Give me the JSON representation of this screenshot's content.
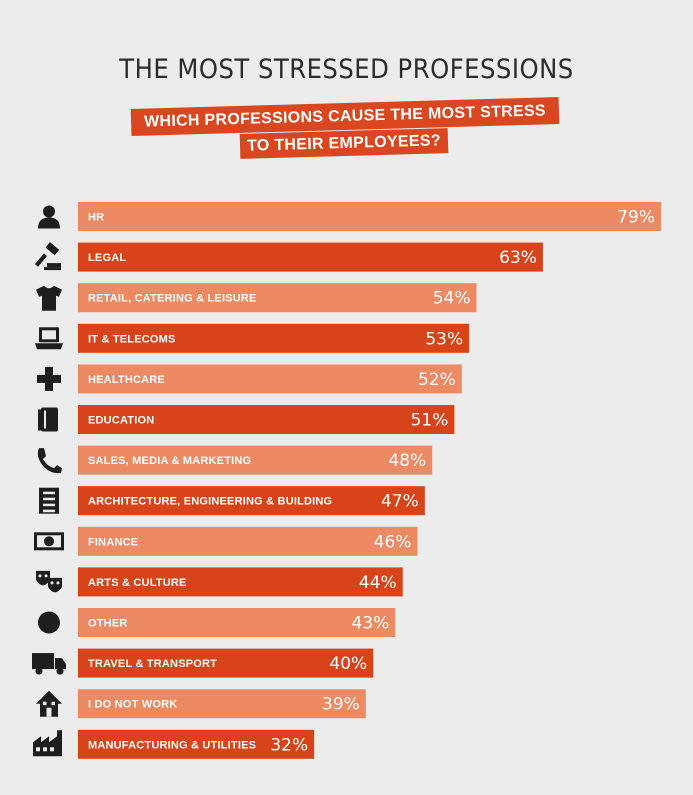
{
  "title": "THE MOST STRESSED PROFESSIONS",
  "subtitle_line1": "WHICH PROFESSIONS CAUSE THE MOST STRESS",
  "subtitle_line2": "TO THEIR EMPLOYEES?",
  "colors": {
    "light": "#eb8a63",
    "dark": "#d8441a",
    "background": "#ececec",
    "banner": "#d9461f"
  },
  "chart_data": {
    "type": "bar",
    "orientation": "horizontal",
    "title": "THE MOST STRESSED PROFESSIONS",
    "subtitle": "WHICH PROFESSIONS CAUSE THE MOST STRESS TO THEIR EMPLOYEES?",
    "categories": [
      "HR",
      "LEGAL",
      "RETAIL, CATERING & LEISURE",
      "IT & TELECOMS",
      "HEALTHCARE",
      "EDUCATION",
      "SALES, MEDIA & MARKETING",
      "ARCHITECTURE, ENGINEERING & BUILDING",
      "FINANCE",
      "ARTS & CULTURE",
      "OTHER",
      "TRAVEL & TRANSPORT",
      "I DO NOT WORK",
      "MANUFACTURING & UTILITIES"
    ],
    "values": [
      79,
      63,
      54,
      53,
      52,
      51,
      48,
      47,
      46,
      44,
      43,
      40,
      39,
      32
    ],
    "value_labels": [
      "79%",
      "63%",
      "54%",
      "53%",
      "52%",
      "51%",
      "48%",
      "47%",
      "46%",
      "44%",
      "43%",
      "40%",
      "39%",
      "32%"
    ],
    "icons": [
      "person-icon",
      "gavel-icon",
      "tshirt-icon",
      "laptop-icon",
      "cross-icon",
      "book-icon",
      "phone-icon",
      "building-icon",
      "banknote-icon",
      "masks-icon",
      "circle-icon",
      "truck-icon",
      "house-icon",
      "factory-icon"
    ],
    "unit": "%",
    "xlim": [
      0,
      79
    ],
    "grid": false,
    "legend": "none"
  }
}
